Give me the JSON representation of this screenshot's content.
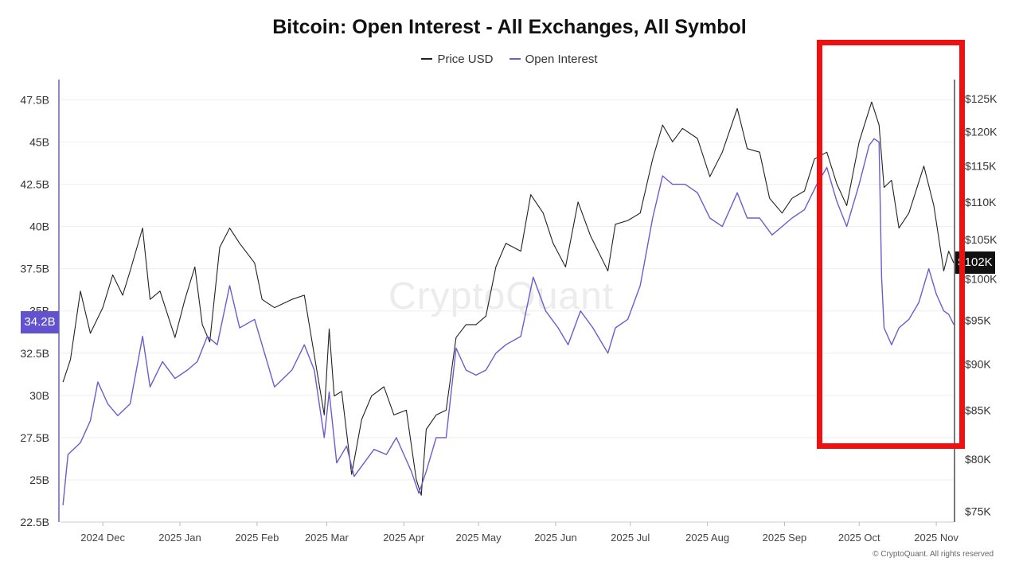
{
  "title": "Bitcoin: Open Interest - All Exchanges, All Symbol",
  "watermark": "CryptoQuant",
  "copyright": "© CryptoQuant. All rights reserved",
  "current_readouts": {
    "open_interest": "34.2B",
    "price": "$102K"
  },
  "colors": {
    "price": "#222222",
    "open_interest": "#6c5ccf",
    "highlight": "#ee1111"
  },
  "chart_data": {
    "type": "line",
    "title": "Bitcoin: Open Interest - All Exchanges, All Symbol",
    "legend": {
      "position": "top-center",
      "entries": [
        "Price USD",
        "Open Interest"
      ]
    },
    "grid": true,
    "x_range": [
      "2024-11-14",
      "2025-11-08"
    ],
    "x_tick_labels": [
      "2024 Dec",
      "2025 Jan",
      "2025 Feb",
      "2025 Mar",
      "2025 Apr",
      "2025 May",
      "2025 Jun",
      "2025 Jul",
      "2025 Aug",
      "2025 Sep",
      "2025 Oct",
      "2025 Nov"
    ],
    "x_tick_dates": [
      "2024-12-01",
      "2025-01-01",
      "2025-02-01",
      "2025-03-01",
      "2025-04-01",
      "2025-05-01",
      "2025-06-01",
      "2025-07-01",
      "2025-08-01",
      "2025-09-01",
      "2025-10-01",
      "2025-11-01"
    ],
    "y_left": {
      "series": "Open Interest",
      "ticks": [
        22.5,
        25,
        27.5,
        30,
        32.5,
        35,
        37.5,
        40,
        42.5,
        45,
        47.5
      ],
      "tick_labels": [
        "22.5B",
        "25B",
        "27.5B",
        "30B",
        "32.5B",
        "35B",
        "37.5B",
        "40B",
        "42.5B",
        "45B",
        "47.5B"
      ],
      "ylim": [
        22.5,
        48.7
      ]
    },
    "y_right": {
      "series": "Price USD",
      "scale": "log",
      "ticks": [
        75000,
        80000,
        85000,
        90000,
        95000,
        100000,
        105000,
        110000,
        115000,
        120000,
        125000
      ],
      "tick_labels": [
        "$75K",
        "$80K",
        "$85K",
        "$90K",
        "$95K",
        "$100K",
        "$105K",
        "$110K",
        "$115K",
        "$120K",
        "$125K"
      ],
      "ylim": [
        74000,
        128000
      ]
    },
    "series": [
      {
        "name": "Price USD",
        "axis": "right",
        "points": [
          [
            "2024-11-15",
            88000
          ],
          [
            "2024-11-18",
            90500
          ],
          [
            "2024-11-22",
            98500
          ],
          [
            "2024-11-26",
            93500
          ],
          [
            "2024-12-01",
            96500
          ],
          [
            "2024-12-05",
            100500
          ],
          [
            "2024-12-09",
            98000
          ],
          [
            "2024-12-12",
            101000
          ],
          [
            "2024-12-17",
            106500
          ],
          [
            "2024-12-20",
            97500
          ],
          [
            "2024-12-24",
            98500
          ],
          [
            "2024-12-30",
            93000
          ],
          [
            "2025-01-03",
            97500
          ],
          [
            "2025-01-07",
            101500
          ],
          [
            "2025-01-10",
            94500
          ],
          [
            "2025-01-13",
            92500
          ],
          [
            "2025-01-17",
            104000
          ],
          [
            "2025-01-21",
            106500
          ],
          [
            "2025-01-25",
            104500
          ],
          [
            "2025-01-31",
            102000
          ],
          [
            "2025-02-03",
            97500
          ],
          [
            "2025-02-08",
            96500
          ],
          [
            "2025-02-15",
            97500
          ],
          [
            "2025-02-20",
            98000
          ],
          [
            "2025-02-24",
            91000
          ],
          [
            "2025-02-28",
            84500
          ],
          [
            "2025-03-02",
            94000
          ],
          [
            "2025-03-04",
            86500
          ],
          [
            "2025-03-07",
            87000
          ],
          [
            "2025-03-11",
            78500
          ],
          [
            "2025-03-15",
            84000
          ],
          [
            "2025-03-19",
            86500
          ],
          [
            "2025-03-24",
            87500
          ],
          [
            "2025-03-28",
            84500
          ],
          [
            "2025-04-02",
            85000
          ],
          [
            "2025-04-06",
            78000
          ],
          [
            "2025-04-08",
            76500
          ],
          [
            "2025-04-10",
            83000
          ],
          [
            "2025-04-14",
            84500
          ],
          [
            "2025-04-18",
            85000
          ],
          [
            "2025-04-22",
            93000
          ],
          [
            "2025-04-26",
            94500
          ],
          [
            "2025-04-30",
            94500
          ],
          [
            "2025-05-04",
            95500
          ],
          [
            "2025-05-08",
            101500
          ],
          [
            "2025-05-12",
            104500
          ],
          [
            "2025-05-18",
            103500
          ],
          [
            "2025-05-22",
            111000
          ],
          [
            "2025-05-27",
            108500
          ],
          [
            "2025-05-31",
            104500
          ],
          [
            "2025-06-05",
            101500
          ],
          [
            "2025-06-10",
            110000
          ],
          [
            "2025-06-15",
            105500
          ],
          [
            "2025-06-22",
            101000
          ],
          [
            "2025-06-25",
            107000
          ],
          [
            "2025-06-30",
            107500
          ],
          [
            "2025-07-05",
            108500
          ],
          [
            "2025-07-10",
            116000
          ],
          [
            "2025-07-14",
            121000
          ],
          [
            "2025-07-18",
            118500
          ],
          [
            "2025-07-22",
            120500
          ],
          [
            "2025-07-28",
            119000
          ],
          [
            "2025-08-02",
            113500
          ],
          [
            "2025-08-07",
            117000
          ],
          [
            "2025-08-13",
            123500
          ],
          [
            "2025-08-17",
            117500
          ],
          [
            "2025-08-22",
            117000
          ],
          [
            "2025-08-26",
            110500
          ],
          [
            "2025-08-31",
            108500
          ],
          [
            "2025-09-04",
            110500
          ],
          [
            "2025-09-09",
            111500
          ],
          [
            "2025-09-13",
            116000
          ],
          [
            "2025-09-18",
            117000
          ],
          [
            "2025-09-22",
            112500
          ],
          [
            "2025-09-26",
            109500
          ],
          [
            "2025-10-01",
            118500
          ],
          [
            "2025-10-06",
            124500
          ],
          [
            "2025-10-09",
            121000
          ],
          [
            "2025-10-11",
            112000
          ],
          [
            "2025-10-14",
            113000
          ],
          [
            "2025-10-17",
            106500
          ],
          [
            "2025-10-21",
            108500
          ],
          [
            "2025-10-27",
            115000
          ],
          [
            "2025-10-31",
            109500
          ],
          [
            "2025-11-04",
            101000
          ],
          [
            "2025-11-06",
            103500
          ],
          [
            "2025-11-08",
            102000
          ]
        ]
      },
      {
        "name": "Open Interest",
        "axis": "left",
        "points": [
          [
            "2024-11-15",
            23.5
          ],
          [
            "2024-11-17",
            26.5
          ],
          [
            "2024-11-22",
            27.2
          ],
          [
            "2024-11-26",
            28.5
          ],
          [
            "2024-11-29",
            30.8
          ],
          [
            "2024-12-03",
            29.5
          ],
          [
            "2024-12-07",
            28.8
          ],
          [
            "2024-12-12",
            29.5
          ],
          [
            "2024-12-17",
            33.5
          ],
          [
            "2024-12-20",
            30.5
          ],
          [
            "2024-12-25",
            32.0
          ],
          [
            "2024-12-30",
            31.0
          ],
          [
            "2025-01-04",
            31.5
          ],
          [
            "2025-01-08",
            32.0
          ],
          [
            "2025-01-12",
            33.5
          ],
          [
            "2025-01-16",
            33.0
          ],
          [
            "2025-01-21",
            36.5
          ],
          [
            "2025-01-25",
            34.0
          ],
          [
            "2025-01-31",
            34.5
          ],
          [
            "2025-02-03",
            33.0
          ],
          [
            "2025-02-08",
            30.5
          ],
          [
            "2025-02-15",
            31.5
          ],
          [
            "2025-02-20",
            33.0
          ],
          [
            "2025-02-24",
            31.5
          ],
          [
            "2025-02-28",
            27.5
          ],
          [
            "2025-03-02",
            30.2
          ],
          [
            "2025-03-05",
            26.0
          ],
          [
            "2025-03-09",
            27.0
          ],
          [
            "2025-03-12",
            25.2
          ],
          [
            "2025-03-16",
            26.0
          ],
          [
            "2025-03-20",
            26.8
          ],
          [
            "2025-03-25",
            26.5
          ],
          [
            "2025-03-29",
            27.5
          ],
          [
            "2025-04-04",
            25.5
          ],
          [
            "2025-04-07",
            24.2
          ],
          [
            "2025-04-10",
            25.5
          ],
          [
            "2025-04-14",
            27.5
          ],
          [
            "2025-04-18",
            27.5
          ],
          [
            "2025-04-22",
            32.8
          ],
          [
            "2025-04-26",
            31.5
          ],
          [
            "2025-04-30",
            31.2
          ],
          [
            "2025-05-04",
            31.5
          ],
          [
            "2025-05-08",
            32.5
          ],
          [
            "2025-05-12",
            33.0
          ],
          [
            "2025-05-18",
            33.5
          ],
          [
            "2025-05-23",
            37.0
          ],
          [
            "2025-05-28",
            35.0
          ],
          [
            "2025-06-02",
            34.0
          ],
          [
            "2025-06-06",
            33.0
          ],
          [
            "2025-06-11",
            35.0
          ],
          [
            "2025-06-16",
            34.0
          ],
          [
            "2025-06-22",
            32.5
          ],
          [
            "2025-06-25",
            34.0
          ],
          [
            "2025-06-30",
            34.5
          ],
          [
            "2025-07-05",
            36.5
          ],
          [
            "2025-07-10",
            40.5
          ],
          [
            "2025-07-14",
            43.0
          ],
          [
            "2025-07-18",
            42.5
          ],
          [
            "2025-07-23",
            42.5
          ],
          [
            "2025-07-28",
            42.0
          ],
          [
            "2025-08-02",
            40.5
          ],
          [
            "2025-08-07",
            40.0
          ],
          [
            "2025-08-13",
            42.0
          ],
          [
            "2025-08-17",
            40.5
          ],
          [
            "2025-08-22",
            40.5
          ],
          [
            "2025-08-27",
            39.5
          ],
          [
            "2025-08-31",
            40.0
          ],
          [
            "2025-09-04",
            40.5
          ],
          [
            "2025-09-09",
            41.0
          ],
          [
            "2025-09-14",
            42.5
          ],
          [
            "2025-09-18",
            43.5
          ],
          [
            "2025-09-22",
            41.5
          ],
          [
            "2025-09-26",
            40.0
          ],
          [
            "2025-10-01",
            42.5
          ],
          [
            "2025-10-05",
            44.8
          ],
          [
            "2025-10-07",
            45.2
          ],
          [
            "2025-10-09",
            45.0
          ],
          [
            "2025-10-10",
            37.0
          ],
          [
            "2025-10-11",
            34.0
          ],
          [
            "2025-10-14",
            33.0
          ],
          [
            "2025-10-17",
            34.0
          ],
          [
            "2025-10-21",
            34.5
          ],
          [
            "2025-10-25",
            35.5
          ],
          [
            "2025-10-29",
            37.5
          ],
          [
            "2025-11-01",
            36.0
          ],
          [
            "2025-11-04",
            35.0
          ],
          [
            "2025-11-06",
            34.8
          ],
          [
            "2025-11-08",
            34.2
          ]
        ]
      }
    ]
  }
}
